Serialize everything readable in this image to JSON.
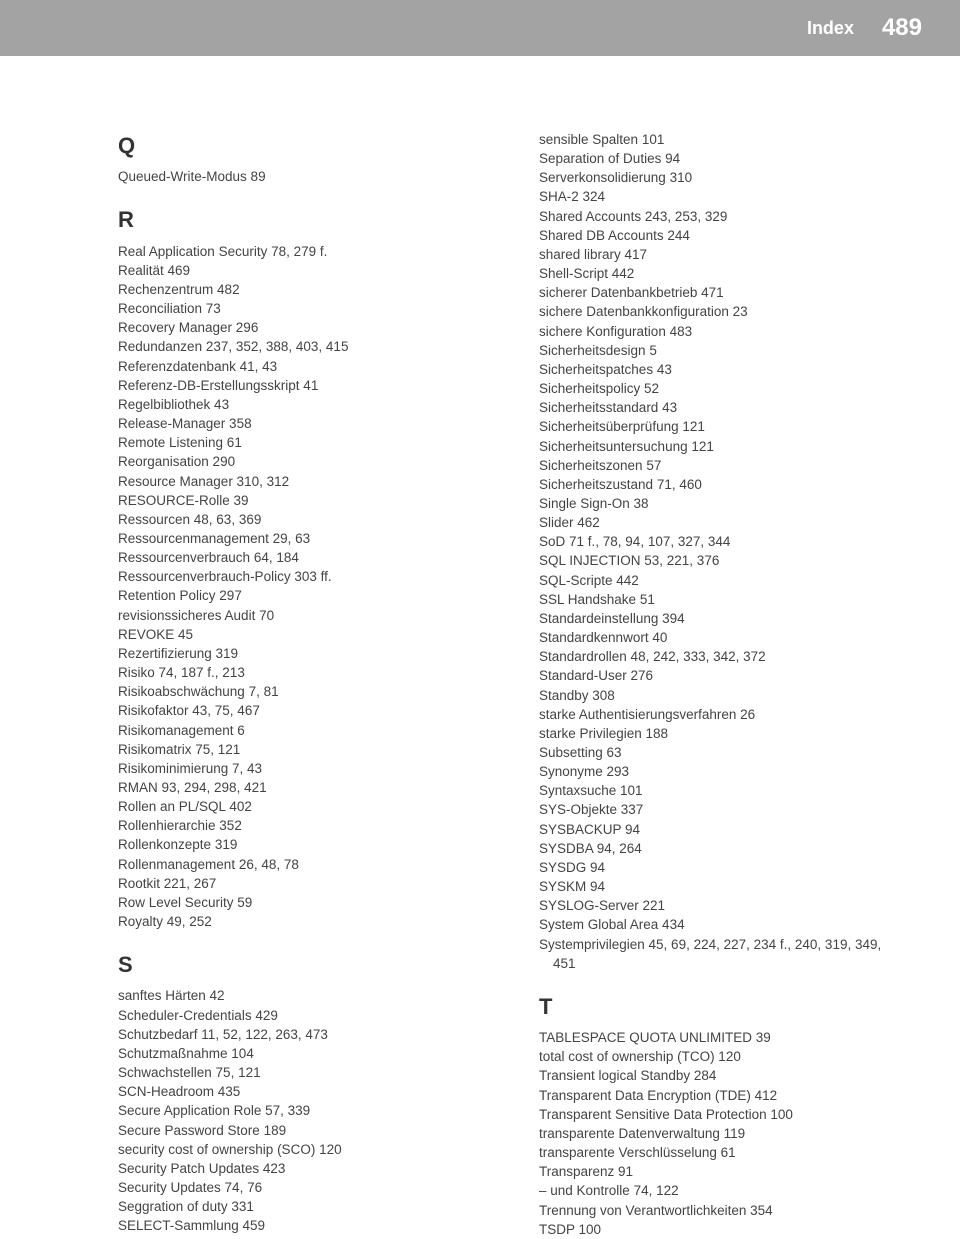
{
  "header": {
    "label": "Index",
    "pageNumber": "489"
  },
  "columns": [
    {
      "sections": [
        {
          "letter": "Q",
          "first": true,
          "entries": [
            {
              "t": "Queued-Write-Modus  89"
            }
          ]
        },
        {
          "letter": "R",
          "entries": [
            {
              "t": "Real Application Security  78, 279 f."
            },
            {
              "t": "Realität  469"
            },
            {
              "t": "Rechenzentrum  482"
            },
            {
              "t": "Reconciliation  73"
            },
            {
              "t": "Recovery Manager  296"
            },
            {
              "t": "Redundanzen  237, 352, 388, 403, 415"
            },
            {
              "t": "Referenzdatenbank  41, 43"
            },
            {
              "t": "Referenz-DB-Erstellungsskript  41"
            },
            {
              "t": "Regelbibliothek  43"
            },
            {
              "t": "Release-Manager  358"
            },
            {
              "t": "Remote Listening  61"
            },
            {
              "t": "Reorganisation  290"
            },
            {
              "t": "Resource Manager  310, 312"
            },
            {
              "t": "RESOURCE-Rolle  39"
            },
            {
              "t": "Ressourcen  48, 63, 369"
            },
            {
              "t": "Ressourcenmanagement  29, 63"
            },
            {
              "t": "Ressourcenverbrauch  64, 184"
            },
            {
              "t": "Ressourcenverbrauch-Policy  303 ff."
            },
            {
              "t": "Retention Policy  297"
            },
            {
              "t": "revisionssicheres Audit  70"
            },
            {
              "t": "REVOKE  45"
            },
            {
              "t": "Rezertifizierung  319"
            },
            {
              "t": "Risiko  74, 187 f., 213"
            },
            {
              "t": "Risikoabschwächung  7, 81"
            },
            {
              "t": "Risikofaktor  43, 75, 467"
            },
            {
              "t": "Risikomanagement  6"
            },
            {
              "t": "Risikomatrix  75, 121"
            },
            {
              "t": "Risikominimierung  7, 43"
            },
            {
              "t": "RMAN  93, 294, 298, 421"
            },
            {
              "t": "Rollen an PL/SQL  402"
            },
            {
              "t": "Rollenhierarchie  352"
            },
            {
              "t": "Rollenkonzepte  319"
            },
            {
              "t": "Rollenmanagement  26, 48, 78"
            },
            {
              "t": "Rootkit  221, 267"
            },
            {
              "t": "Row Level Security  59"
            },
            {
              "t": "Royalty  49, 252"
            }
          ]
        },
        {
          "letter": "S",
          "entries": [
            {
              "t": "sanftes Härten  42"
            },
            {
              "t": "Scheduler-Credentials  429"
            },
            {
              "t": "Schutzbedarf  11, 52, 122, 263, 473"
            },
            {
              "t": "Schutzmaßnahme  104"
            },
            {
              "t": "Schwachstellen  75, 121"
            },
            {
              "t": "SCN-Headroom  435"
            },
            {
              "t": "Secure Application Role  57, 339"
            },
            {
              "t": "Secure Password Store  189"
            },
            {
              "t": "security cost of ownership (SCO)  120"
            },
            {
              "t": "Security Patch Updates  423"
            },
            {
              "t": "Security Updates  74, 76"
            },
            {
              "t": "Seggration of duty  331"
            },
            {
              "t": "SELECT-Sammlung  459"
            }
          ]
        }
      ]
    },
    {
      "sections": [
        {
          "continuation": true,
          "entries": [
            {
              "t": "sensible Spalten  101"
            },
            {
              "t": "Separation of Duties  94"
            },
            {
              "t": "Serverkonsolidierung  310"
            },
            {
              "t": "SHA-2  324"
            },
            {
              "t": "Shared Accounts  243, 253, 329"
            },
            {
              "t": "Shared DB Accounts  244"
            },
            {
              "t": "shared library  417"
            },
            {
              "t": "Shell-Script  442"
            },
            {
              "t": "sicherer Datenbankbetrieb  471"
            },
            {
              "t": "sichere Datenbankkonfiguration  23"
            },
            {
              "t": "sichere Konfiguration  483"
            },
            {
              "t": "Sicherheitsdesign  5"
            },
            {
              "t": "Sicherheitspatches  43"
            },
            {
              "t": "Sicherheitspolicy  52"
            },
            {
              "t": "Sicherheitsstandard  43"
            },
            {
              "t": "Sicherheitsüberprüfung  121"
            },
            {
              "t": "Sicherheitsuntersuchung  121"
            },
            {
              "t": "Sicherheitszonen  57"
            },
            {
              "t": "Sicherheitszustand  71, 460"
            },
            {
              "t": "Single Sign-On  38"
            },
            {
              "t": "Slider  462"
            },
            {
              "t": "SoD  71 f., 78, 94, 107, 327, 344"
            },
            {
              "t": "SQL INJECTION  53, 221, 376"
            },
            {
              "t": "SQL-Scripte  442"
            },
            {
              "t": "SSL Handshake  51"
            },
            {
              "t": "Standardeinstellung  394"
            },
            {
              "t": "Standardkennwort  40"
            },
            {
              "t": "Standardrollen  48, 242, 333, 342, 372"
            },
            {
              "t": "Standard-User  276"
            },
            {
              "t": "Standby  308"
            },
            {
              "t": "starke Authentisierungsverfahren  26"
            },
            {
              "t": "starke Privilegien  188"
            },
            {
              "t": "Subsetting  63"
            },
            {
              "t": "Synonyme  293"
            },
            {
              "t": "Syntaxsuche  101"
            },
            {
              "t": "SYS-Objekte  337"
            },
            {
              "t": "SYSBACKUP  94"
            },
            {
              "t": "SYSDBA  94, 264"
            },
            {
              "t": "SYSDG  94"
            },
            {
              "t": "SYSKM  94"
            },
            {
              "t": "SYSLOG-Server  221"
            },
            {
              "t": "System Global Area  434"
            },
            {
              "t": "Systemprivilegien  45, 69, 224, 227, 234 f., 240, 319, 349,"
            },
            {
              "t": "451",
              "indent": true
            }
          ]
        },
        {
          "letter": "T",
          "entries": [
            {
              "t": "TABLESPACE QUOTA UNLIMITED  39"
            },
            {
              "t": "total cost of ownership (TCO)  120"
            },
            {
              "t": "Transient logical Standby  284"
            },
            {
              "t": "Transparent Data Encryption (TDE)  412"
            },
            {
              "t": "Transparent Sensitive Data Protection  100"
            },
            {
              "t": "transparente Datenverwaltung  119"
            },
            {
              "t": "transparente Verschlüsselung  61"
            },
            {
              "t": "Transparenz  91"
            },
            {
              "t": "– und Kontrolle  74, 122"
            },
            {
              "t": "Trennung von Verantwortlichkeiten  354"
            },
            {
              "t": "TSDP  100"
            }
          ]
        }
      ]
    }
  ]
}
